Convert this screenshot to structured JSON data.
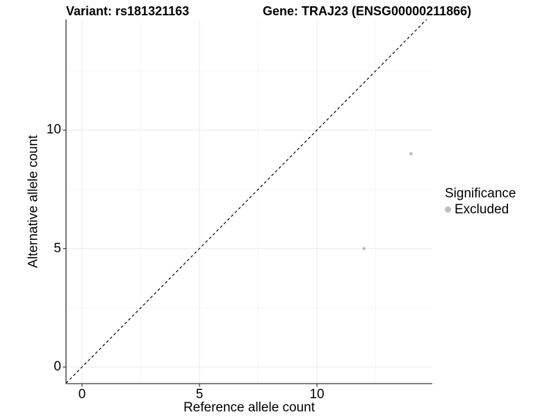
{
  "titles": {
    "variant": "Variant: rs181321163",
    "gene": "Gene: TRAJ23 (ENSG00000211866)"
  },
  "chart_data": {
    "type": "scatter",
    "title_left": "Variant: rs181321163",
    "title_right": "Gene: TRAJ23 (ENSG00000211866)",
    "xlabel": "Reference allele count",
    "ylabel": "Alternative allele count",
    "xlim": [
      -0.68,
      14.91
    ],
    "ylim": [
      -0.7,
      14.67
    ],
    "x_ticks": [
      0,
      5,
      10
    ],
    "y_ticks": [
      0,
      5,
      10
    ],
    "x_minor_breaks": [
      2.5,
      7.5,
      12.5
    ],
    "y_minor_breaks": [
      2.5,
      7.5,
      12.5
    ],
    "grid": true,
    "points": [
      {
        "x": 12,
        "y": 5,
        "significance": "Excluded"
      },
      {
        "x": 14,
        "y": 9,
        "significance": "Excluded"
      }
    ],
    "reference_line": {
      "kind": "identity y=x",
      "style": "dashed",
      "color": "#000000"
    },
    "legend": {
      "title": "Significance",
      "position": "right",
      "items": [
        {
          "label": "Excluded",
          "color": "#bebebe"
        }
      ]
    },
    "colors": {
      "point": "#bebebe",
      "axis_line": "#333333",
      "tick_mark": "#333333",
      "grid_major": "#ebebeb",
      "grid_minor": "#f5f5f5",
      "text": "#000000"
    }
  }
}
